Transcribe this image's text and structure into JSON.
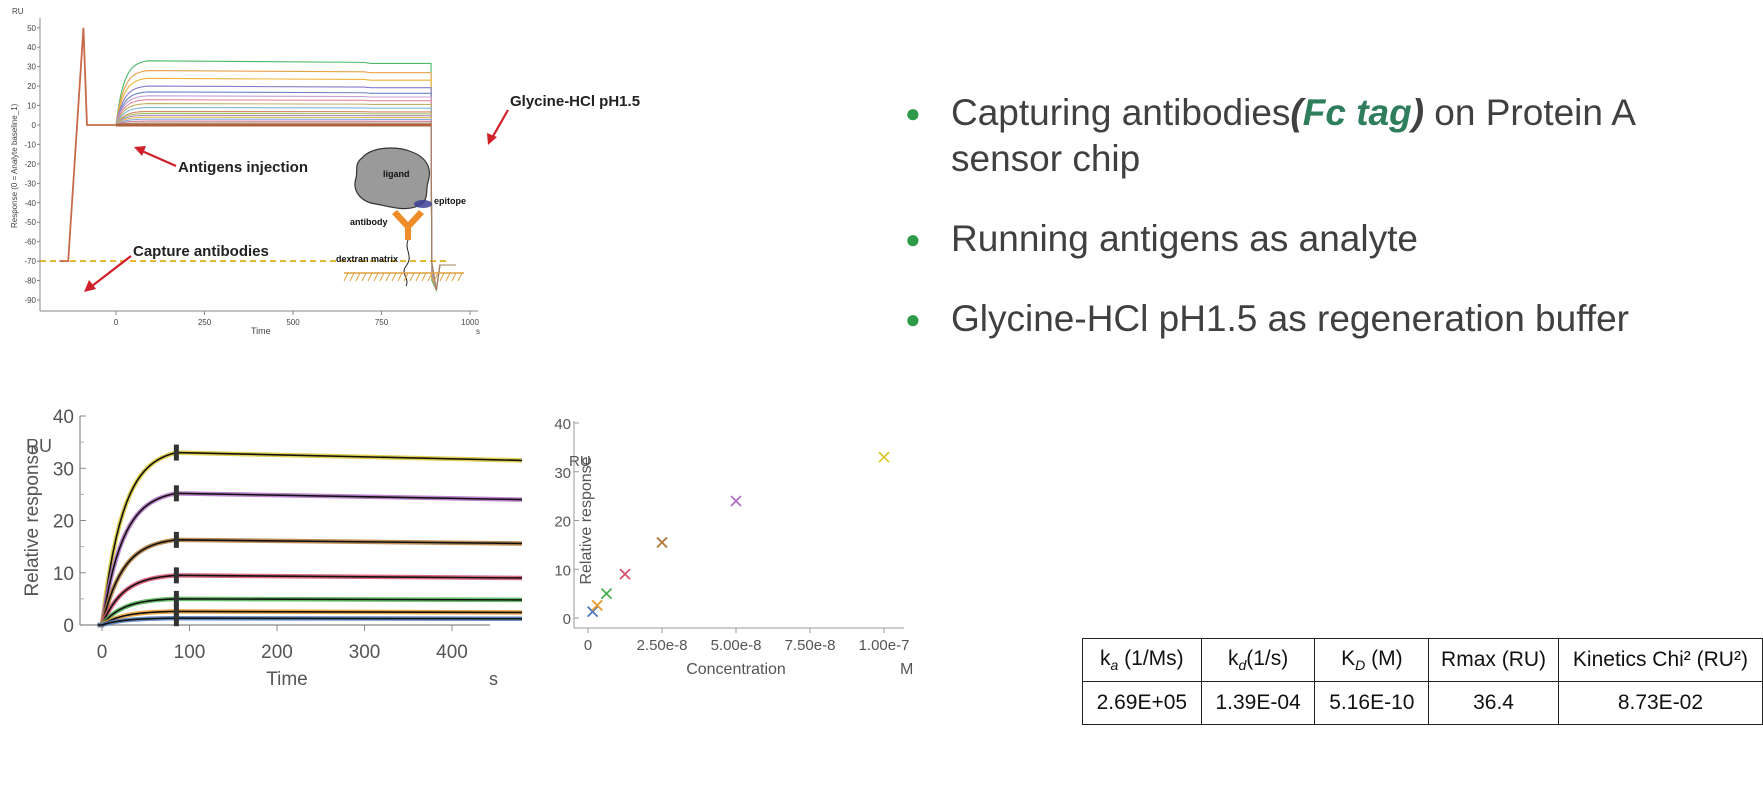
{
  "top_chart": {
    "y_unit": "RU",
    "y_label": "Response (0 = Analyte baseline_1)",
    "x_label": "Time",
    "x_unit": "s",
    "y_ticks": [
      50,
      40,
      30,
      20,
      10,
      0,
      -10,
      -20,
      -30,
      -40,
      -50,
      -60,
      -70,
      -80,
      -90
    ],
    "x_ticks": [
      0,
      250,
      500,
      750,
      1000
    ],
    "annotations": {
      "glycine": "Glycine-HCl pH1.5",
      "antigens": "Antigens injection",
      "capture": "Capture antibodies"
    },
    "inset": {
      "ligand": "ligand",
      "epitope": "epitope",
      "antibody": "antibody",
      "dextran": "dextran  matrix"
    }
  },
  "bullets": {
    "b1_pre": "Capturing antibodies",
    "b1_open": "(",
    "b1_tag": "Fc tag",
    "b1_close": ")",
    "b1_post": " on Protein A sensor chip",
    "b2": "Running antigens as analyte",
    "b3": "Glycine-HCl pH1.5 as regeneration buffer"
  },
  "chart_data": [
    {
      "type": "line",
      "title": "",
      "xlabel": "Time",
      "x_unit": "s",
      "ylabel": "Relative response",
      "y_unit": "RU",
      "xlim": [
        -20,
        480
      ],
      "ylim": [
        0,
        40
      ],
      "x_ticks": [
        0,
        100,
        200,
        300,
        400
      ],
      "y_ticks": [
        0,
        10,
        20,
        30,
        40
      ],
      "association_end": 85,
      "series": [
        {
          "color": "#d9c832",
          "plateau": 33.0,
          "end": 31.5
        },
        {
          "color": "#b06ec2",
          "plateau": 25.2,
          "end": 24.0
        },
        {
          "color": "#b07a3a",
          "plateau": 16.3,
          "end": 15.6
        },
        {
          "color": "#d6506e",
          "plateau": 9.5,
          "end": 9.0
        },
        {
          "color": "#4caf50",
          "plateau": 5.0,
          "end": 4.8
        },
        {
          "color": "#e89a2c",
          "plateau": 2.6,
          "end": 2.4
        },
        {
          "color": "#4e79b8",
          "plateau": 1.3,
          "end": 1.2
        }
      ]
    },
    {
      "type": "scatter",
      "title": "",
      "xlabel": "Concentration",
      "x_unit": "M",
      "ylabel": "Relative response",
      "y_unit": "RU",
      "xlim": [
        0,
        1e-07
      ],
      "ylim": [
        0,
        40
      ],
      "x_ticks": [
        0,
        2.5e-08,
        5e-08,
        7.5e-08,
        1e-07
      ],
      "x_tick_labels": [
        "0",
        "2.50e-8",
        "5.00e-8",
        "7.50e-8",
        "1.00e-7"
      ],
      "y_ticks": [
        0,
        10,
        20,
        30,
        40
      ],
      "points": [
        {
          "x": 1.5625e-09,
          "y": 1.3,
          "color": "#4e79b8"
        },
        {
          "x": 3.125e-09,
          "y": 2.6,
          "color": "#e89a2c"
        },
        {
          "x": 6.25e-09,
          "y": 5.0,
          "color": "#4caf50"
        },
        {
          "x": 1.25e-08,
          "y": 9.0,
          "color": "#d6506e"
        },
        {
          "x": 2.5e-08,
          "y": 15.5,
          "color": "#b07a3a"
        },
        {
          "x": 5e-08,
          "y": 24.0,
          "color": "#b06ec2"
        },
        {
          "x": 1e-07,
          "y": 33.0,
          "color": "#d9c832"
        }
      ]
    }
  ],
  "table": {
    "headers": [
      {
        "base": "k",
        "sub": "a",
        "sub_italic": true,
        "rest": " (1/Ms)"
      },
      {
        "base": "k",
        "sub": "d",
        "sub_italic": true,
        "rest": "(1/s)"
      },
      {
        "base": "K",
        "sub": "D",
        "sub_italic": true,
        "rest": " (M)"
      },
      {
        "base": "Rmax (RU)",
        "sub": "",
        "sub_italic": false,
        "rest": ""
      },
      {
        "base": "Kinetics Chi² (RU²)",
        "sub": "",
        "sub_italic": false,
        "rest": ""
      }
    ],
    "values": [
      "2.69E+05",
      "1.39E-04",
      "5.16E-10",
      "36.4",
      "8.73E-02"
    ]
  },
  "colors": {
    "bullet_dot": "#2e9b4a",
    "fc_tag": "#2e7d5b",
    "arrow": "#d0202a",
    "baseline": "#e0a800"
  }
}
